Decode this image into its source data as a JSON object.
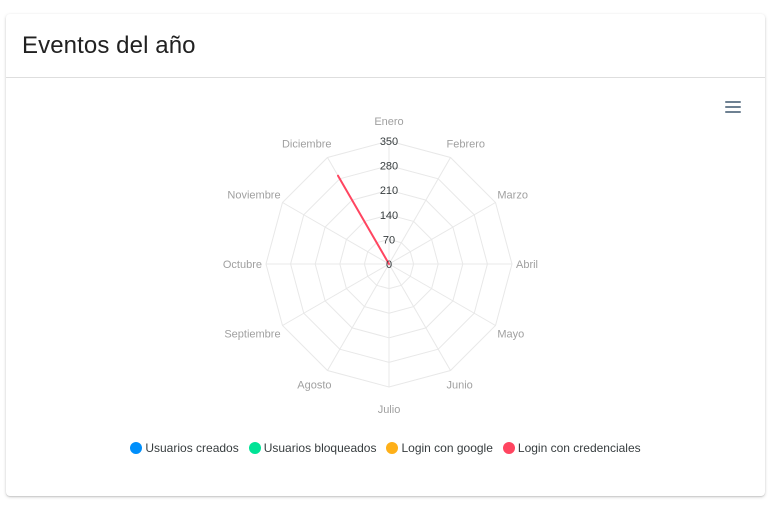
{
  "card": {
    "title": "Eventos del año"
  },
  "chart_data": {
    "type": "radar",
    "categories": [
      "Enero",
      "Febrero",
      "Marzo",
      "Abril",
      "Mayo",
      "Junio",
      "Julio",
      "Agosto",
      "Septiembre",
      "Octubre",
      "Noviembre",
      "Diciembre"
    ],
    "yticks": [
      "0",
      "70",
      "140",
      "210",
      "280",
      "350"
    ],
    "ylim": [
      0,
      350
    ],
    "series": [
      {
        "name": "Usuarios creados",
        "color": "#008ffb",
        "values": [
          0,
          0,
          0,
          0,
          0,
          0,
          0,
          0,
          0,
          0,
          0,
          0
        ]
      },
      {
        "name": "Usuarios bloqueados",
        "color": "#00e396",
        "values": [
          0,
          0,
          0,
          0,
          0,
          0,
          0,
          0,
          0,
          0,
          0,
          0
        ]
      },
      {
        "name": "Login con google",
        "color": "#feb019",
        "values": [
          0,
          0,
          0,
          0,
          0,
          0,
          0,
          0,
          0,
          0,
          0,
          0
        ]
      },
      {
        "name": "Login con credenciales",
        "color": "#ff4560",
        "values": [
          0,
          0,
          0,
          0,
          0,
          0,
          0,
          0,
          0,
          0,
          0,
          290
        ]
      }
    ],
    "legend_position": "bottom",
    "grid": true
  }
}
